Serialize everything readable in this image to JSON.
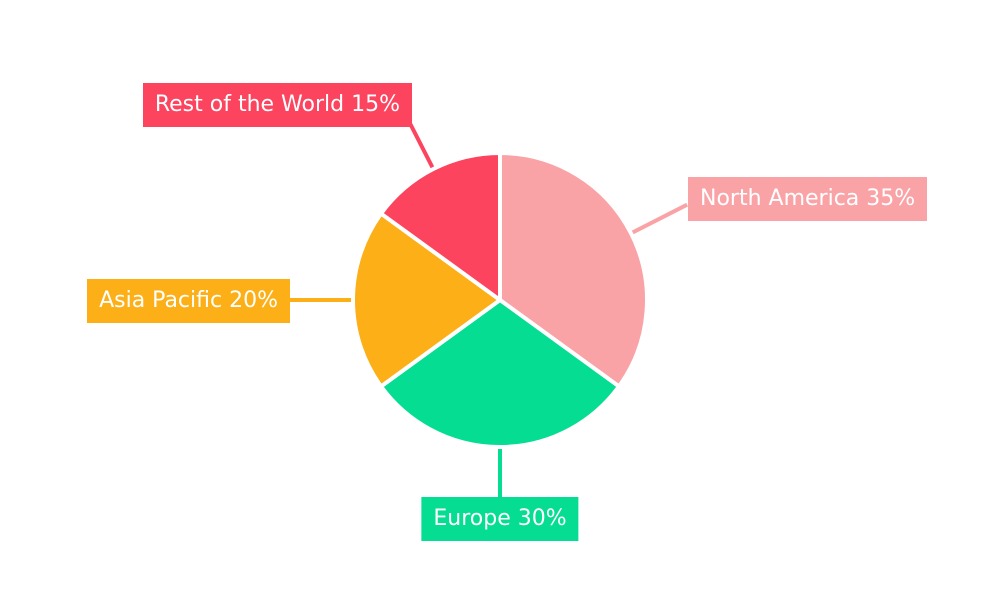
{
  "chart_data": {
    "type": "pie",
    "direction": "clockwise",
    "start_angle_deg": 0,
    "legend_position": "none",
    "labels_style": "external-callout-boxes",
    "label_text_color": "#FFFFFF",
    "background": "#FFFFFF",
    "slice_gap_color": "#FFFFFF",
    "categories": [
      "North America",
      "Europe",
      "Asia Pacific",
      "Rest of the World"
    ],
    "values": [
      35,
      30,
      20,
      15
    ],
    "slices": [
      {
        "label": "North America",
        "value": 35,
        "display": "North America 35%",
        "color": "#F9A3A7"
      },
      {
        "label": "Europe",
        "value": 30,
        "display": "Europe 30%",
        "color": "#04DD92"
      },
      {
        "label": "Asia Pacific",
        "value": 20,
        "display": "Asia Pacific 20%",
        "color": "#FCAF17"
      },
      {
        "label": "Rest of the World",
        "value": 15,
        "display": "Rest of the World 15%",
        "color": "#FC445F"
      }
    ]
  }
}
